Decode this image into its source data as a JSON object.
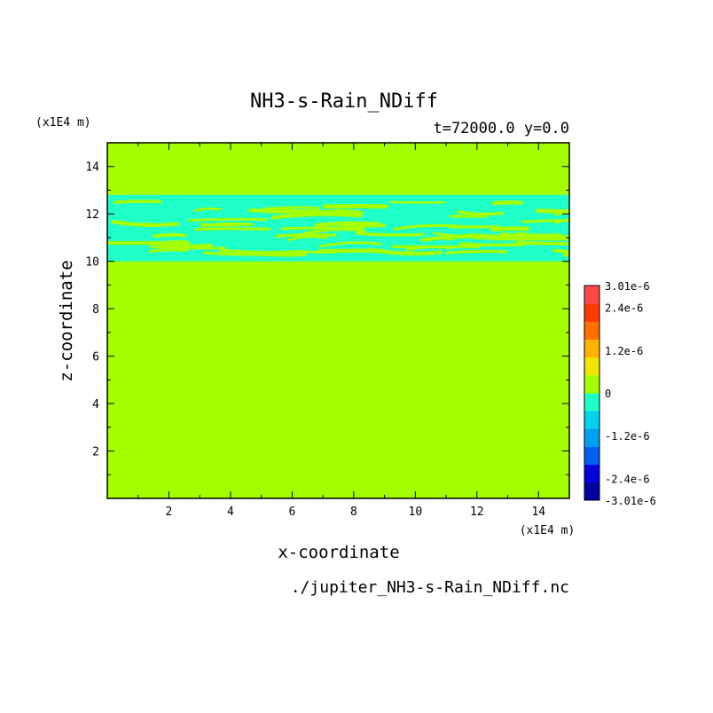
{
  "chart_data": {
    "type": "heatmap",
    "title": "NH3-s-Rain_NDiff",
    "subtitle": "t=72000.0 y=0.0",
    "xlabel": "x-coordinate",
    "ylabel": "z-coordinate",
    "x_unit": "(x1E4 m)",
    "y_unit": "(x1E4 m)",
    "source_file": "./jupiter_NH3-s-Rain_NDiff.nc",
    "xlim": [
      0,
      15
    ],
    "ylim": [
      0,
      15
    ],
    "x_ticks": [
      2,
      4,
      6,
      8,
      10,
      12,
      14
    ],
    "y_ticks": [
      2,
      4,
      6,
      8,
      10,
      12,
      14
    ],
    "background_value": 0,
    "band": {
      "z_bottom": 10,
      "z_top": 12.8,
      "value": "-1.2e-6 to 0"
    },
    "colorbar": {
      "labels": [
        {
          "text": "3.01e-6",
          "value": 3.01e-06
        },
        {
          "text": "2.4e-6",
          "value": 2.4e-06
        },
        {
          "text": "1.2e-6",
          "value": 1.2e-06
        },
        {
          "text": "0",
          "value": 0
        },
        {
          "text": "-1.2e-6",
          "value": -1.2e-06
        },
        {
          "text": "-2.4e-6",
          "value": -2.4e-06
        },
        {
          "text": "-3.01e-6",
          "value": -3.01e-06
        }
      ],
      "colors_bottom_to_top": [
        "#0000a0",
        "#0000dd",
        "#0060f0",
        "#00a0f0",
        "#00d2f0",
        "#1fffc8",
        "#a6ff00",
        "#f0e600",
        "#ffb300",
        "#ff7000",
        "#ff3a00",
        "#ff4848"
      ]
    },
    "colors": {
      "background": "#a6ff00",
      "band": "#1fffc8"
    }
  }
}
